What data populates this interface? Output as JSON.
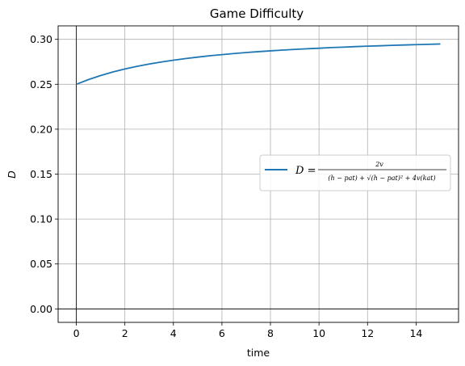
{
  "chart_data": {
    "type": "line",
    "title": "Game Difficulty",
    "xlabel": "time",
    "ylabel": "D",
    "xlim": [
      -0.75,
      15.75
    ],
    "ylim": [
      -0.015,
      0.315
    ],
    "x_ticks": [
      0,
      2,
      4,
      6,
      8,
      10,
      12,
      14
    ],
    "y_ticks": [
      0.0,
      0.05,
      0.1,
      0.15,
      0.2,
      0.25,
      0.3
    ],
    "x_tick_labels": [
      "0",
      "2",
      "4",
      "6",
      "8",
      "10",
      "12",
      "14"
    ],
    "y_tick_labels": [
      "0.00",
      "0.05",
      "0.10",
      "0.15",
      "0.20",
      "0.25",
      "0.30"
    ],
    "grid": true,
    "legend_position": "center-right",
    "colors": {
      "series": "#1f77b4",
      "grid": "#b0b0b0",
      "axes": "#000000"
    },
    "series": [
      {
        "name": "D = 2v / ((h − pat) + √((h − pat)² + 4v(kat)))",
        "x": [
          0,
          0.5,
          1,
          1.5,
          2,
          2.5,
          3,
          3.5,
          4,
          4.5,
          5,
          5.5,
          6,
          6.5,
          7,
          7.5,
          8,
          8.5,
          9,
          9.5,
          10,
          10.5,
          11,
          11.5,
          12,
          12.5,
          13,
          13.5,
          14,
          14.5,
          15
        ],
        "y": [
          0.25,
          0.2552,
          0.2597,
          0.2636,
          0.267,
          0.2699,
          0.2725,
          0.2748,
          0.2768,
          0.2786,
          0.2802,
          0.2817,
          0.283,
          0.2842,
          0.2853,
          0.2863,
          0.2872,
          0.288,
          0.2888,
          0.2895,
          0.2901,
          0.2908,
          0.2913,
          0.2919,
          0.2924,
          0.2928,
          0.2933,
          0.2937,
          0.2941,
          0.2944,
          0.2948
        ]
      }
    ]
  }
}
